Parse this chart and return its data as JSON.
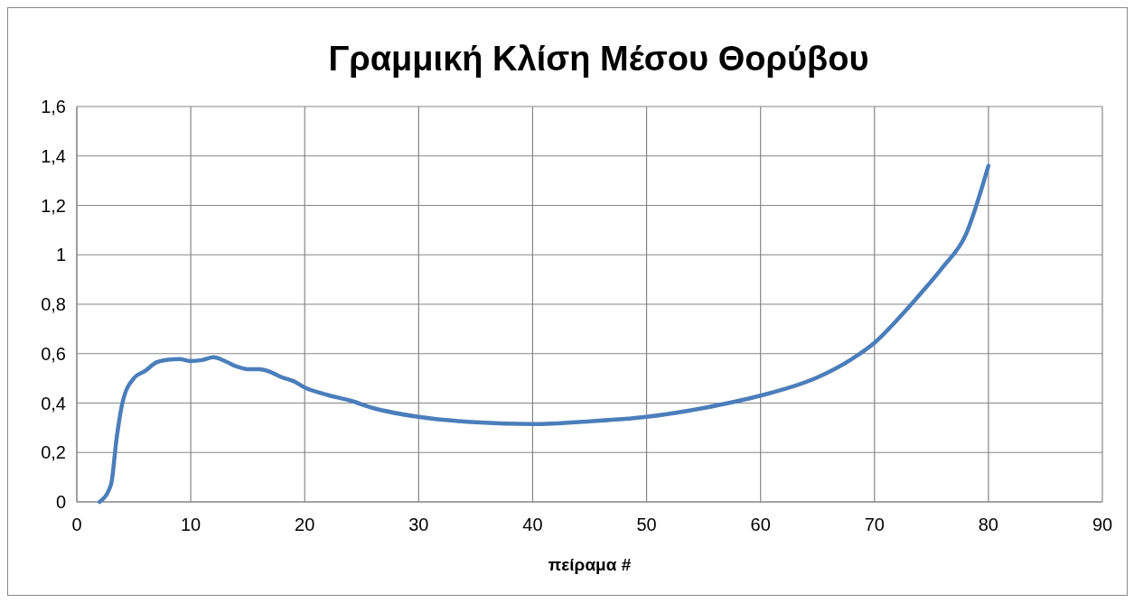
{
  "chart_data": {
    "type": "line",
    "title": "Γραμμική Κλίση Μέσου Θορύβου",
    "xlabel": "πείραμα #",
    "x": [
      2,
      3,
      3.5,
      4,
      5,
      6,
      7,
      8,
      9,
      10,
      11,
      12,
      13,
      14,
      15,
      16,
      17,
      18,
      19,
      20,
      22,
      24,
      26,
      30,
      35,
      40,
      45,
      50,
      55,
      60,
      65,
      68,
      70,
      72,
      74,
      76,
      78,
      80
    ],
    "series": [
      {
        "color": "#4a7ebb",
        "values": [
          0,
          0.07,
          0.26,
          0.4,
          0.5,
          0.53,
          0.565,
          0.575,
          0.578,
          0.57,
          0.574,
          0.585,
          0.57,
          0.548,
          0.537,
          0.537,
          0.526,
          0.504,
          0.489,
          0.463,
          0.433,
          0.41,
          0.38,
          0.344,
          0.322,
          0.315,
          0.326,
          0.344,
          0.38,
          0.43,
          0.504,
          0.578,
          0.644,
          0.737,
          0.84,
          0.95,
          1.08,
          1.36
        ]
      }
    ],
    "xlim": [
      0,
      90
    ],
    "xticks": [
      0,
      10,
      20,
      30,
      40,
      50,
      60,
      70,
      80,
      90
    ],
    "ylim": [
      0,
      1.6
    ],
    "yticks": [
      0,
      {
        "value": 0.2,
        "label": "0,2"
      },
      {
        "value": 0.4,
        "label": "0,4"
      },
      {
        "value": 0.6,
        "label": "0,6"
      },
      {
        "value": 0.8,
        "label": "0,8"
      },
      1,
      {
        "value": 1.2,
        "label": "1,2"
      },
      {
        "value": 1.4,
        "label": "1,4"
      },
      {
        "value": 1.6,
        "label": "1,6"
      }
    ],
    "grid": true,
    "marker": "none",
    "line_style": "solid"
  }
}
